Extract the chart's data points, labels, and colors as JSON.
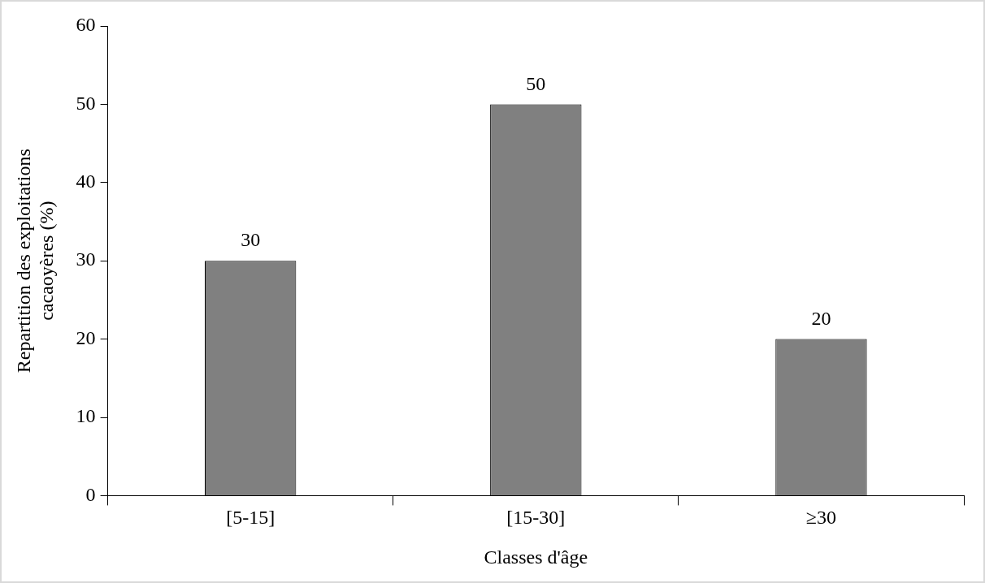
{
  "chart_data": {
    "type": "bar",
    "xlabel": "Classes d'âge",
    "ylabel": "Repartition des exploitations cacaoyères (%)",
    "categories": [
      "[5-15]",
      "[15-30]",
      "≥30"
    ],
    "values": [
      30,
      50,
      20
    ],
    "color": "#808080",
    "ylim": [
      0,
      60
    ],
    "yticks": [
      0,
      10,
      20,
      30,
      40,
      50,
      60
    ],
    "grid": false,
    "legend": false,
    "data_labels": true
  }
}
